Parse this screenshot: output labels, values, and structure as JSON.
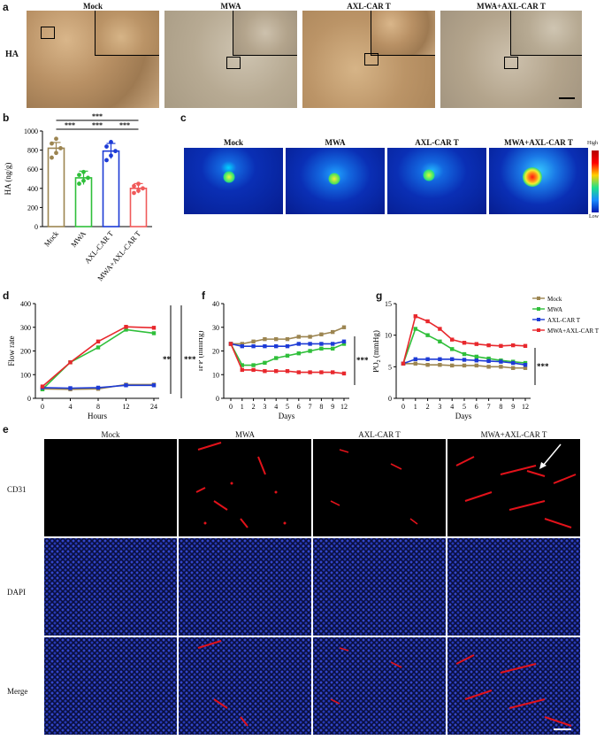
{
  "panel_a": {
    "label": "a",
    "row_label": "HA",
    "groups": [
      "Mock",
      "MWA",
      "AXL-CAR T",
      "MWA+AXL-CAR T"
    ]
  },
  "panel_b": {
    "label": "b",
    "chart_data": {
      "type": "bar",
      "categories": [
        "Mock",
        "MWA",
        "AXL-CAR T",
        "MWA+AXL-CAR T"
      ],
      "values": [
        820,
        510,
        790,
        400
      ],
      "errors": [
        60,
        70,
        80,
        50
      ],
      "ylabel": "HA (ng/g)",
      "ylim": [
        0,
        1000
      ],
      "yticks": [
        0,
        200,
        400,
        600,
        800,
        1000
      ],
      "colors": [
        "#9c8551",
        "#2fbf3a",
        "#1d3bd6",
        "#f05a5a"
      ],
      "significance": [
        "***",
        "***",
        "***",
        "***"
      ]
    }
  },
  "panel_c": {
    "label": "c",
    "groups": [
      "Mock",
      "MWA",
      "AXL-CAR T",
      "MWA+AXL-CAR T"
    ],
    "scale_high": "High",
    "scale_low": "Low"
  },
  "panel_d": {
    "label": "d",
    "chart_data": {
      "type": "line",
      "x": [
        "0",
        "4",
        "8",
        "12",
        "24"
      ],
      "ylabel": "Flow rate",
      "xlabel": "Hours",
      "ylim": [
        0,
        400
      ],
      "yticks": [
        0,
        100,
        200,
        300,
        400
      ],
      "series": [
        {
          "values": [
            40,
            38,
            40,
            58,
            58
          ],
          "color": "#9c8551"
        },
        {
          "values": [
            38,
            152,
            215,
            290,
            275
          ],
          "color": "#2fbf3a"
        },
        {
          "values": [
            45,
            43,
            45,
            55,
            55
          ],
          "color": "#1d3bd6"
        },
        {
          "values": [
            50,
            152,
            240,
            302,
            298
          ],
          "color": "#e8282d"
        }
      ],
      "significance": [
        "**",
        "***"
      ]
    }
  },
  "panel_f": {
    "label": "f",
    "chart_data": {
      "type": "line",
      "x": [
        "0",
        "1",
        "2",
        "3",
        "4",
        "5",
        "6",
        "7",
        "8",
        "9",
        "12"
      ],
      "ylabel": "IFP (mmHg)",
      "xlabel": "Days",
      "ylim": [
        0,
        40
      ],
      "yticks": [
        0,
        10,
        20,
        30,
        40
      ],
      "series": [
        {
          "values": [
            23,
            23,
            24,
            25,
            25,
            25,
            26,
            26,
            27,
            28,
            30
          ],
          "color": "#9c8551"
        },
        {
          "values": [
            23,
            14,
            14,
            15,
            17,
            18,
            19,
            20,
            21,
            21,
            23
          ],
          "color": "#2fbf3a"
        },
        {
          "values": [
            23,
            22,
            22,
            22,
            22,
            22,
            23,
            23,
            23,
            23,
            24
          ],
          "color": "#1d3bd6"
        },
        {
          "values": [
            23,
            12,
            12,
            11.5,
            11.5,
            11.5,
            11,
            11,
            11,
            11,
            10.5
          ],
          "color": "#e8282d"
        }
      ],
      "significance": [
        "***"
      ]
    }
  },
  "panel_g": {
    "label": "g",
    "chart_data": {
      "type": "line",
      "x": [
        "0",
        "1",
        "2",
        "3",
        "4",
        "5",
        "6",
        "7",
        "8",
        "9",
        "12"
      ],
      "ylabel_main": "PO",
      "ylabel_sub": "2",
      "ylabel_unit": " (mmHg)",
      "xlabel": "Days",
      "ylim": [
        0,
        15
      ],
      "yticks": [
        0,
        5,
        10,
        15
      ],
      "series": [
        {
          "name": "Mock",
          "values": [
            5.5,
            5.5,
            5.3,
            5.3,
            5.2,
            5.2,
            5.2,
            5.0,
            5.0,
            4.8,
            4.8
          ],
          "color": "#9c8551"
        },
        {
          "name": "MWA",
          "values": [
            5.5,
            11,
            10,
            9,
            7.8,
            7,
            6.6,
            6.3,
            6,
            5.8,
            5.6
          ],
          "color": "#2fbf3a"
        },
        {
          "name": "AXL-CAR T",
          "values": [
            5.5,
            6.2,
            6.2,
            6.2,
            6.2,
            6.1,
            6.0,
            5.9,
            5.8,
            5.6,
            5.3
          ],
          "color": "#1d3bd6"
        },
        {
          "name": "MWA+AXL-CAR T",
          "values": [
            5.5,
            13,
            12.2,
            11,
            9.3,
            8.8,
            8.6,
            8.4,
            8.3,
            8.4,
            8.3
          ],
          "color": "#e8282d"
        }
      ],
      "significance": [
        "***"
      ]
    }
  },
  "panel_e": {
    "label": "e",
    "groups": [
      "Mock",
      "MWA",
      "AXL-CAR T",
      "MWA+AXL-CAR T"
    ],
    "rows": [
      "CD31",
      "DAPI",
      "Merge"
    ]
  }
}
